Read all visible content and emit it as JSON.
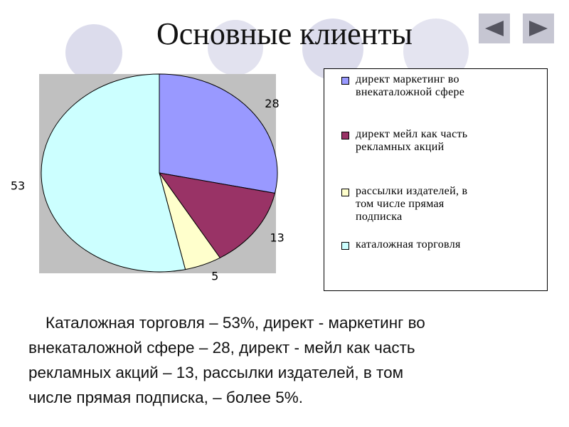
{
  "title": "Основные клиенты",
  "nav": {
    "prev_icon": "triangle-left-icon",
    "next_icon": "triangle-right-icon"
  },
  "chart_data": {
    "type": "pie",
    "start_angle_deg": 0,
    "direction": "clockwise",
    "legend_position": "right",
    "slices": [
      {
        "label": "директ маркетинг во внекаталожной сфере",
        "value": 28,
        "value_label": "28",
        "color": "#9999ff"
      },
      {
        "label": "директ мейл как часть рекламных акций",
        "value": 13,
        "value_label": "13",
        "color": "#993366"
      },
      {
        "label": "рассылки издателей, в том числе прямая подписка",
        "value": 5,
        "value_label": "5",
        "color": "#ffffcc"
      },
      {
        "label": "каталожная торговля",
        "value": 53,
        "value_label": "53",
        "color": "#ccffff"
      }
    ]
  },
  "legend": {
    "items": [
      {
        "lines": [
          "директ маркетинг во",
          "внекаталожной сфере"
        ]
      },
      {
        "lines": [
          "директ мейл как часть",
          "рекламных акций"
        ]
      },
      {
        "lines": [
          "рассылки издателей, в",
          "том числе прямая",
          "подписка"
        ]
      },
      {
        "lines": [
          "каталожная торговля"
        ]
      }
    ]
  },
  "caption": {
    "lines": [
      "Каталожная торговля – 53%, директ - маркетинг во",
      "внекаталожной сфере – 28, директ - мейл как часть",
      "рекламных акций – 13, рассылки издателей, в том",
      "числе прямая подписка, – более 5%."
    ]
  }
}
